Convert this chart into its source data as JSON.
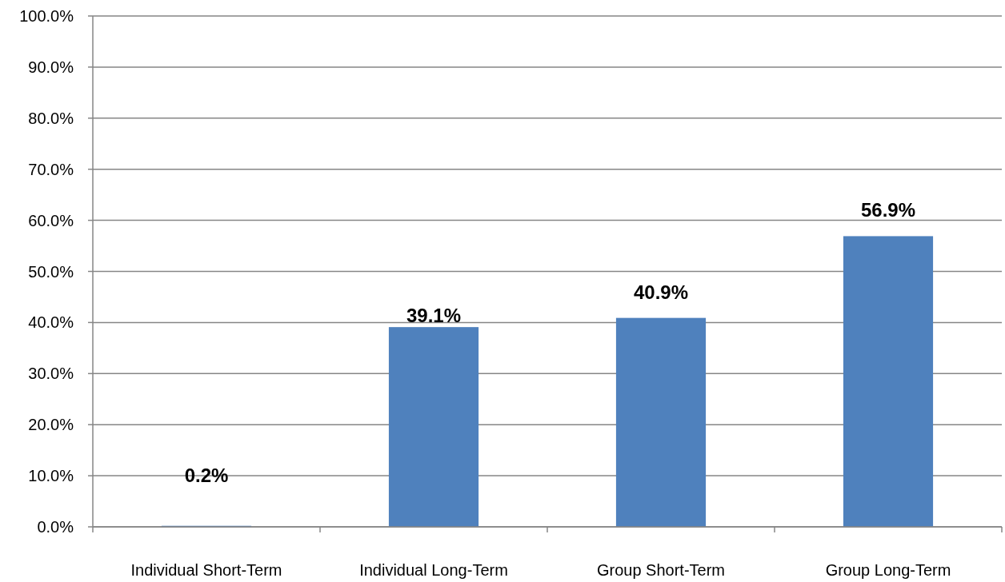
{
  "chart_data": {
    "type": "bar",
    "categories": [
      "Individual Short-Term",
      "Individual Long-Term",
      "Group Short-Term",
      "Group Long-Term"
    ],
    "values": [
      0.2,
      39.1,
      40.9,
      56.9
    ],
    "color": "#4f81bd",
    "value_labels": [
      "0.2%",
      "39.1%",
      "40.9%",
      "56.9%"
    ],
    "ylim": [
      0,
      100
    ],
    "yticks": [
      {
        "value": 0,
        "label": "0.0%"
      },
      {
        "value": 10,
        "label": "10.0%"
      },
      {
        "value": 20,
        "label": "20.0%"
      },
      {
        "value": 30,
        "label": "30.0%"
      },
      {
        "value": 40,
        "label": "40.0%"
      },
      {
        "value": 50,
        "label": "50.0%"
      },
      {
        "value": 60,
        "label": "60.0%"
      },
      {
        "value": 70,
        "label": "70.0%"
      },
      {
        "value": 80,
        "label": "80.0%"
      },
      {
        "value": 90,
        "label": "90.0%"
      },
      {
        "value": 100,
        "label": "100.0%"
      }
    ],
    "grid": "y"
  }
}
